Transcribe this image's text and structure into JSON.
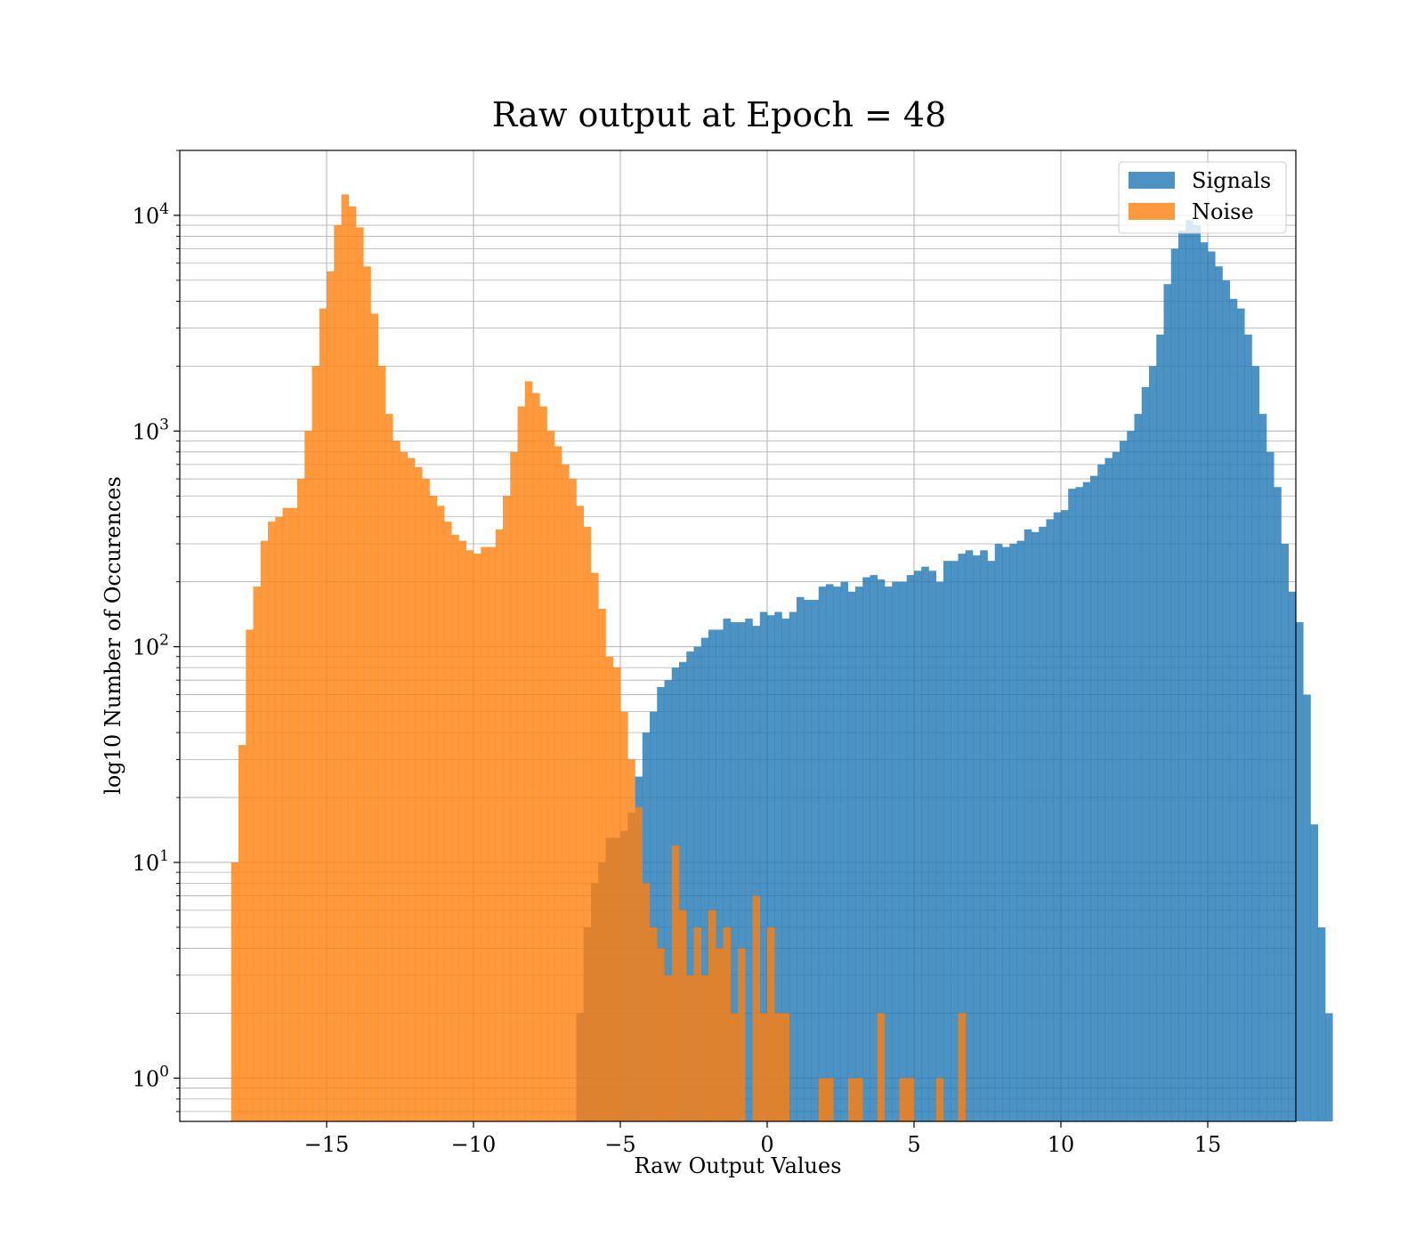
{
  "chart_data": {
    "type": "histogram",
    "title": "Raw output at Epoch = 48",
    "xlabel": "Raw Output Values",
    "ylabel": "log10 Number of Occurences",
    "xlim": [
      -20,
      18
    ],
    "ylim": [
      0.63,
      20000
    ],
    "yscale": "log",
    "grid": true,
    "legend_position": "top-right",
    "x_ticks": [
      -15,
      -10,
      -5,
      0,
      5,
      10,
      15
    ],
    "x_tick_labels": [
      "−15",
      "−10",
      "−5",
      "0",
      "5",
      "10",
      "15"
    ],
    "y_ticks": [
      1,
      10,
      100,
      1000,
      10000
    ],
    "y_tick_labels": [
      {
        "base": "10",
        "exp": "0"
      },
      {
        "base": "10",
        "exp": "1"
      },
      {
        "base": "10",
        "exp": "2"
      },
      {
        "base": "10",
        "exp": "3"
      },
      {
        "base": "10",
        "exp": "4"
      }
    ],
    "series": [
      {
        "name": "Signals",
        "color": "#1f77b4",
        "opacity": 0.8,
        "bin_start": -6.5,
        "bin_width": 0.25,
        "counts": [
          2,
          5,
          8,
          10,
          13,
          13,
          14,
          17,
          25,
          40,
          50,
          65,
          70,
          80,
          85,
          95,
          100,
          110,
          120,
          120,
          135,
          130,
          130,
          135,
          125,
          145,
          140,
          145,
          135,
          145,
          170,
          165,
          165,
          190,
          195,
          190,
          200,
          180,
          190,
          210,
          215,
          205,
          190,
          200,
          200,
          215,
          225,
          235,
          225,
          200,
          250,
          250,
          270,
          280,
          265,
          280,
          250,
          300,
          290,
          300,
          310,
          350,
          340,
          360,
          390,
          420,
          430,
          540,
          550,
          580,
          620,
          700,
          750,
          800,
          900,
          1000,
          1200,
          1600,
          2000,
          2800,
          4800,
          7000,
          8500,
          9500,
          9000,
          7500,
          6800,
          5800,
          5000,
          4100,
          3700,
          2800,
          2000,
          1200,
          800,
          550,
          300,
          180,
          130,
          60,
          15,
          5,
          2
        ]
      },
      {
        "name": "Noise",
        "color": "#ff7f0e",
        "opacity": 0.8,
        "bin_start": -18.25,
        "bin_width": 0.25,
        "counts": [
          10,
          35,
          120,
          190,
          310,
          380,
          400,
          440,
          440,
          600,
          1000,
          2000,
          3700,
          5500,
          9000,
          12500,
          11000,
          8800,
          5800,
          3500,
          2000,
          1200,
          900,
          800,
          750,
          680,
          600,
          500,
          450,
          380,
          330,
          310,
          280,
          270,
          290,
          290,
          350,
          500,
          800,
          1300,
          1700,
          1500,
          1300,
          1000,
          850,
          700,
          600,
          450,
          360,
          220,
          150,
          90,
          80,
          50,
          30,
          18,
          8,
          5,
          4,
          3,
          12,
          6,
          3,
          5,
          3,
          6,
          4,
          5,
          2,
          4,
          0,
          7,
          2,
          5,
          2,
          2,
          0,
          0,
          0,
          0,
          1,
          1,
          0,
          0,
          1,
          1,
          0,
          0,
          2,
          0,
          0,
          1,
          1,
          0,
          0,
          0,
          1,
          0,
          0,
          2
        ]
      }
    ]
  }
}
